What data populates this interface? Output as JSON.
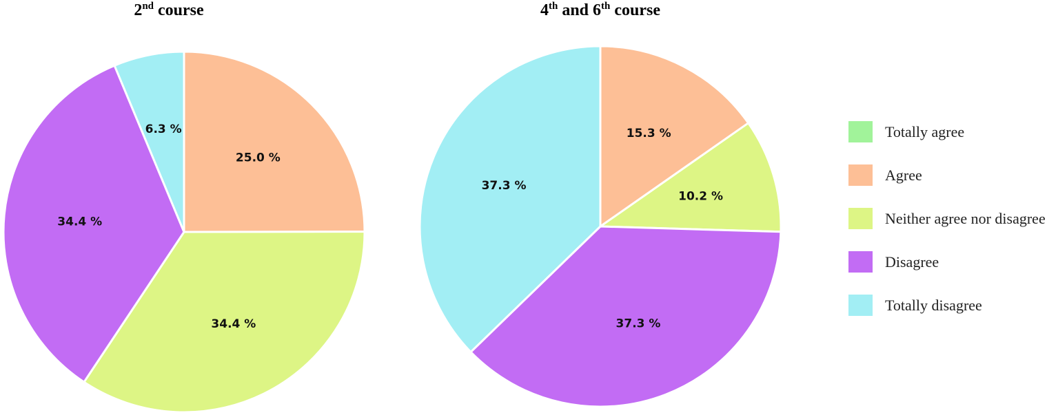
{
  "chart_data": [
    {
      "type": "pie",
      "title": {
        "base": "2",
        "sup": "nd",
        "rest": " course"
      },
      "slices": [
        {
          "category": "Agree",
          "value": 25.0,
          "label": "25.0 %",
          "color": "#FDBF96"
        },
        {
          "category": "Neither agree nor disagree",
          "value": 34.4,
          "label": "34.4 %",
          "color": "#DDF585"
        },
        {
          "category": "Disagree",
          "value": 34.4,
          "label": "34.4 %",
          "color": "#C26CF4"
        },
        {
          "category": "Totally disagree",
          "value": 6.3,
          "label": "6.3 %",
          "color": "#A2EEF4"
        }
      ]
    },
    {
      "type": "pie",
      "title": {
        "base": "4",
        "sup": "th",
        "mid": " and 6",
        "sup2": "th",
        "rest": " course"
      },
      "slices": [
        {
          "category": "Agree",
          "value": 15.3,
          "label": "15.3 %",
          "color": "#FDBF96"
        },
        {
          "category": "Neither agree nor disagree",
          "value": 10.2,
          "label": "10.2 %",
          "color": "#DDF585"
        },
        {
          "category": "Disagree",
          "value": 37.3,
          "label": "37.3 %",
          "color": "#C26CF4"
        },
        {
          "category": "Totally disagree",
          "value": 37.3,
          "label": "37.3 %",
          "color": "#A2EEF4"
        }
      ]
    }
  ],
  "legend": [
    {
      "label": "Totally agree",
      "color": "#A1F39A"
    },
    {
      "label": "Agree",
      "color": "#FDBF96"
    },
    {
      "label": "Neither agree nor disagree",
      "color": "#DDF585"
    },
    {
      "label": "Disagree",
      "color": "#C26CF4"
    },
    {
      "label": "Totally disagree",
      "color": "#A2EEF4"
    }
  ]
}
